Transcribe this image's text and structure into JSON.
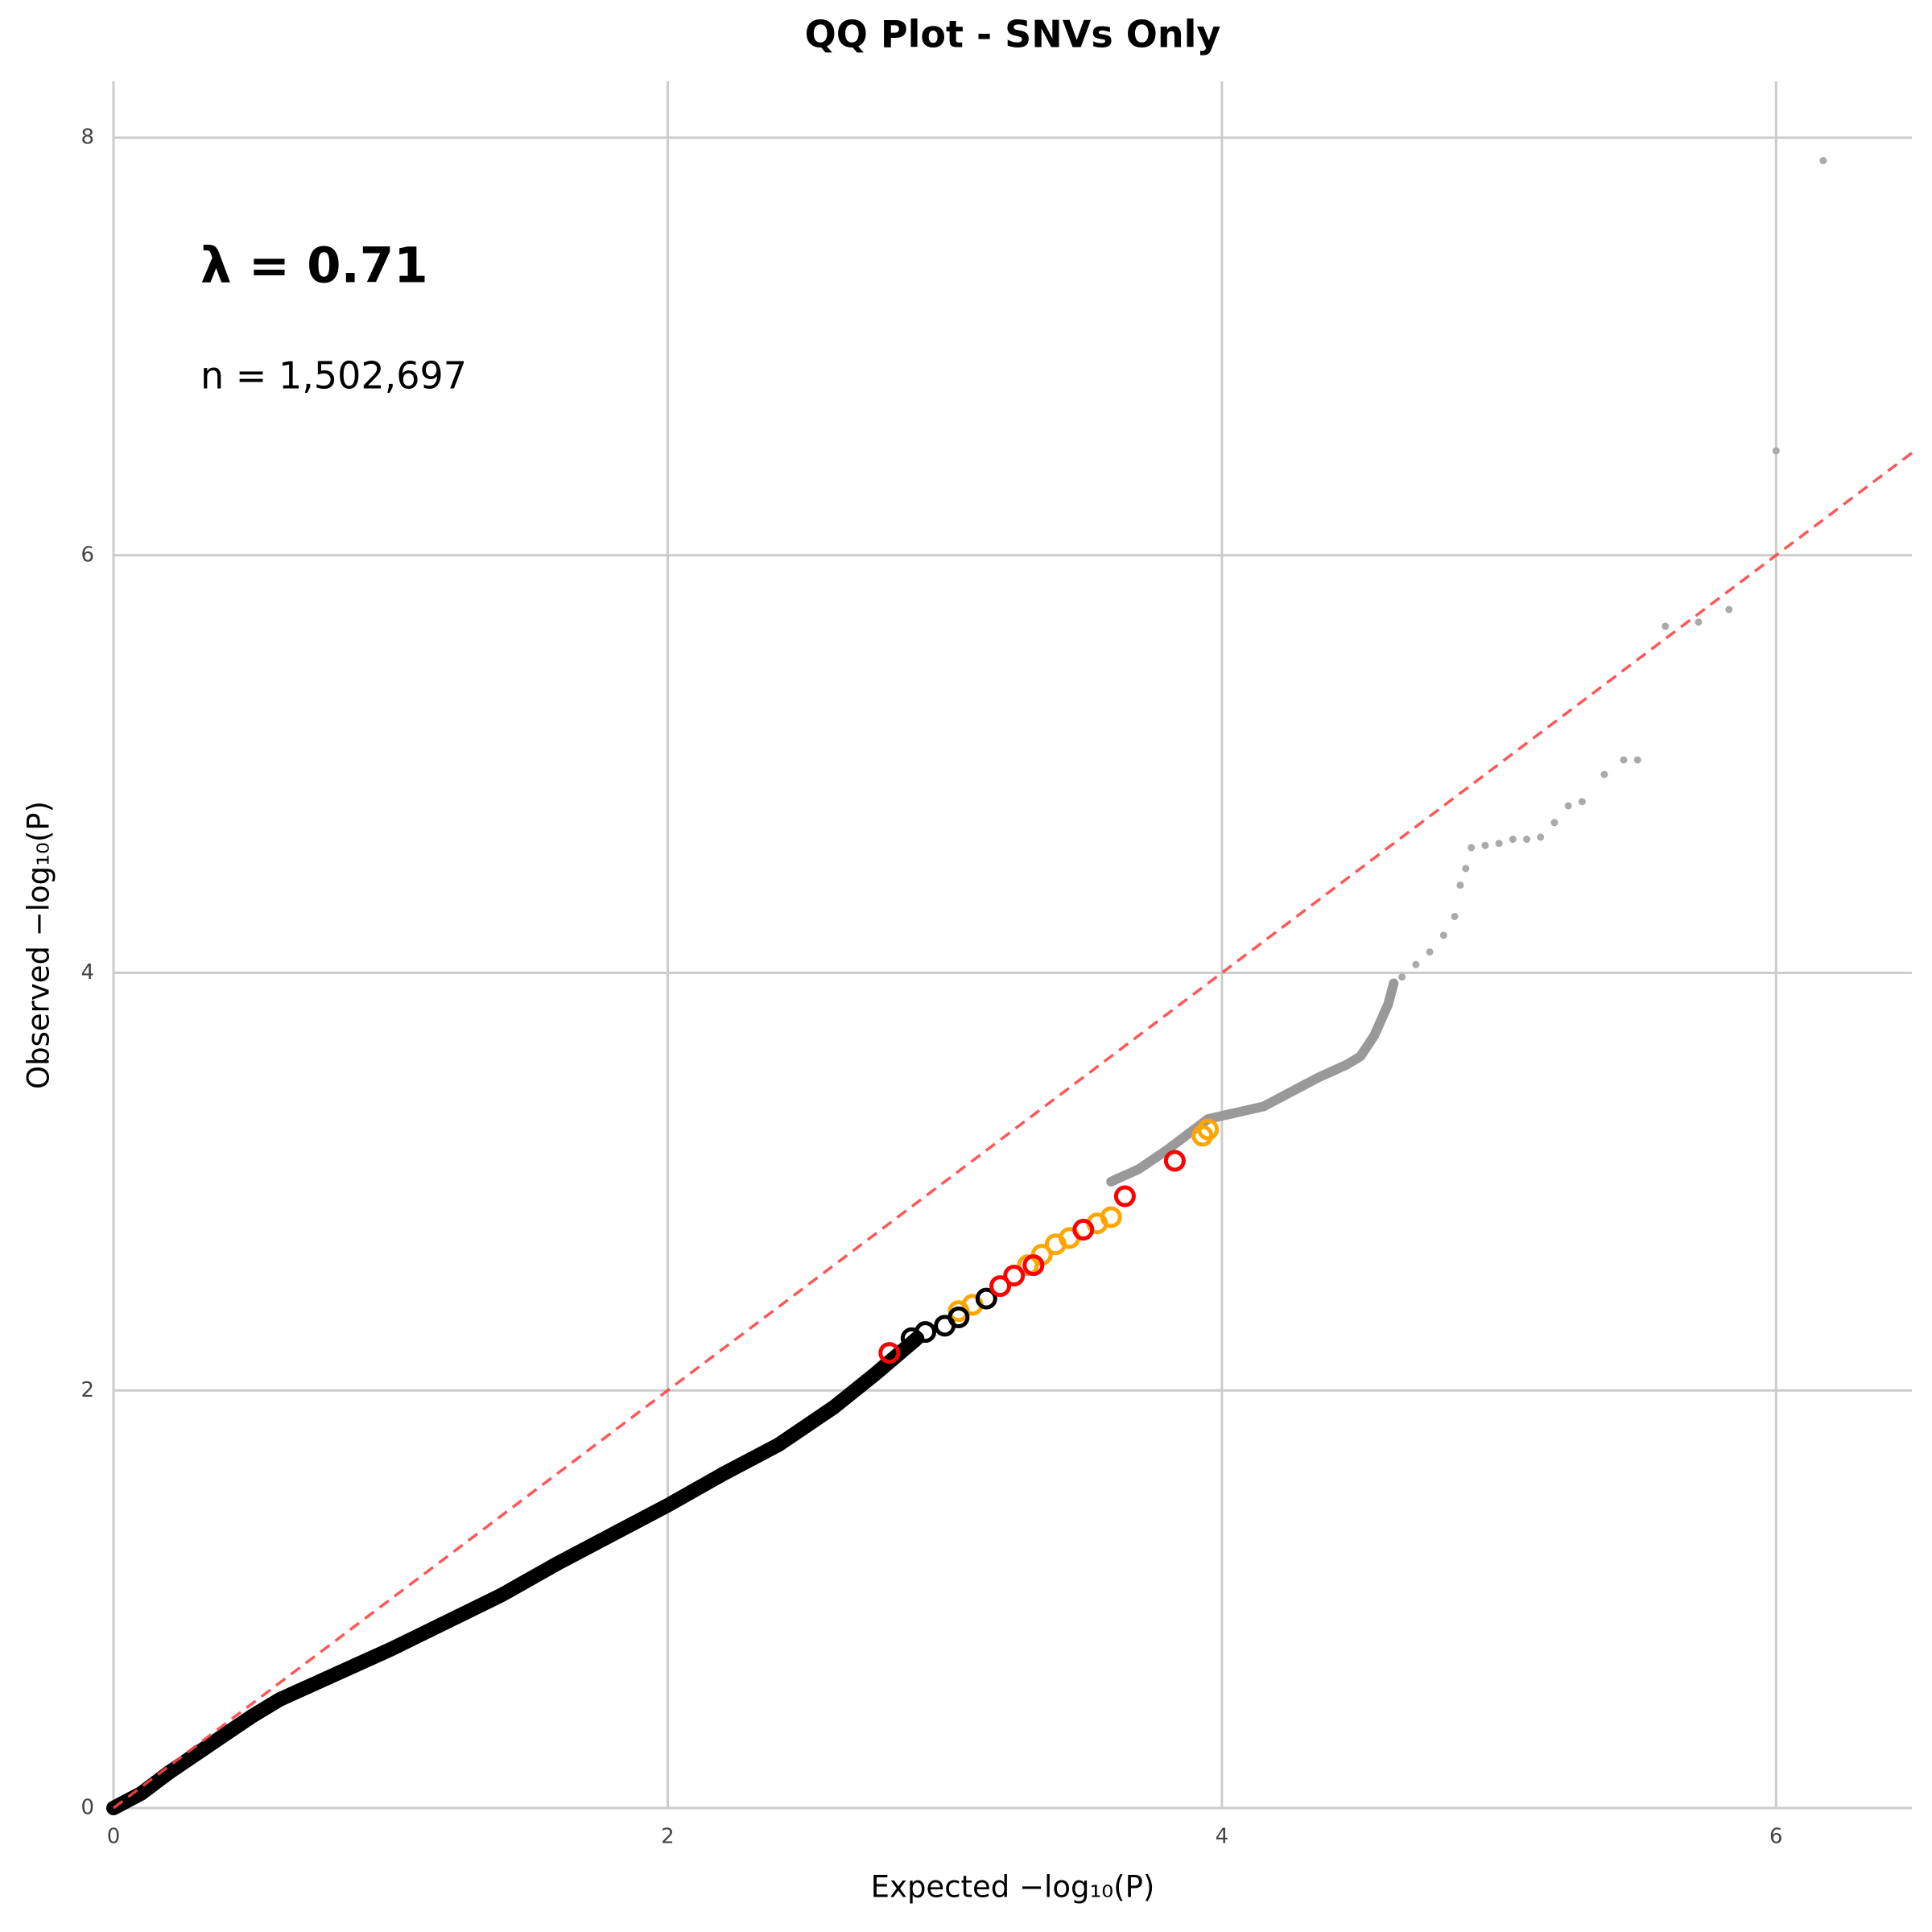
{
  "chart_data": {
    "type": "scatter",
    "title": "QQ Plot - SNVs Only",
    "x_label": "Expected −log₁₀(P)",
    "y_label": "Observed −log₁₀(P)",
    "annotations": [
      "λ = 0.71",
      "n = 1,502,697"
    ],
    "xlim": [
      0,
      6.49
    ],
    "ylim": [
      0,
      8.27
    ],
    "xticks": [
      0,
      2,
      4,
      6
    ],
    "yticks": [
      0,
      2,
      4,
      6,
      8
    ],
    "grid": true,
    "diagonal": {
      "color": "#ff4444",
      "style": "dashed"
    },
    "series": [
      {
        "color": "#000000",
        "mode": "band",
        "x": [
          0,
          0.1,
          0.2,
          0.3,
          0.4,
          0.5,
          0.6,
          0.8,
          1.0,
          1.2,
          1.4,
          1.6,
          1.8,
          2.0,
          2.2,
          2.4,
          2.6,
          2.75,
          2.9
        ],
        "values": [
          0,
          0.07,
          0.17,
          0.26,
          0.35,
          0.44,
          0.52,
          0.64,
          0.76,
          0.89,
          1.02,
          1.17,
          1.31,
          1.45,
          1.6,
          1.74,
          1.92,
          2.08,
          2.25
        ]
      },
      {
        "color": "#999999",
        "mode": "band",
        "x": [
          3.6,
          3.7,
          3.8,
          3.95,
          4.05,
          4.15,
          4.25,
          4.35,
          4.45,
          4.5,
          4.55,
          4.6,
          4.62
        ],
        "values": [
          3.0,
          3.06,
          3.15,
          3.3,
          3.33,
          3.36,
          3.43,
          3.5,
          3.56,
          3.6,
          3.7,
          3.85,
          3.95
        ]
      },
      {
        "color": "#aaaaaa",
        "mode": "dots",
        "x": [
          4.65,
          4.7,
          4.75,
          4.8,
          4.84,
          4.86,
          4.88,
          4.9,
          4.95,
          5.0,
          5.05,
          5.1,
          5.15,
          5.2,
          5.25,
          5.3,
          5.38,
          5.45,
          5.5,
          5.6,
          5.72,
          5.83,
          6.0,
          6.17
        ],
        "values": [
          3.98,
          4.04,
          4.1,
          4.18,
          4.27,
          4.42,
          4.5,
          4.6,
          4.61,
          4.62,
          4.64,
          4.64,
          4.65,
          4.72,
          4.8,
          4.82,
          4.95,
          5.02,
          5.02,
          5.66,
          5.68,
          5.74,
          6.5,
          7.89
        ]
      },
      {
        "color": "#ffa500",
        "mode": "rings",
        "x": [
          3.05,
          3.1,
          3.3,
          3.35,
          3.4,
          3.45,
          3.55,
          3.6,
          3.93,
          3.95
        ],
        "values": [
          2.38,
          2.41,
          2.6,
          2.65,
          2.7,
          2.73,
          2.8,
          2.83,
          3.22,
          3.25
        ]
      },
      {
        "color": "#000000",
        "mode": "rings",
        "x": [
          2.88,
          2.93,
          3.0,
          3.05,
          3.15
        ],
        "values": [
          2.25,
          2.28,
          2.31,
          2.35,
          2.44
        ]
      },
      {
        "color": "#ff0000",
        "mode": "rings",
        "x": [
          2.8,
          3.2,
          3.25,
          3.32,
          3.5,
          3.65,
          3.83
        ],
        "values": [
          2.18,
          2.5,
          2.55,
          2.6,
          2.77,
          2.93,
          3.1
        ]
      }
    ]
  }
}
